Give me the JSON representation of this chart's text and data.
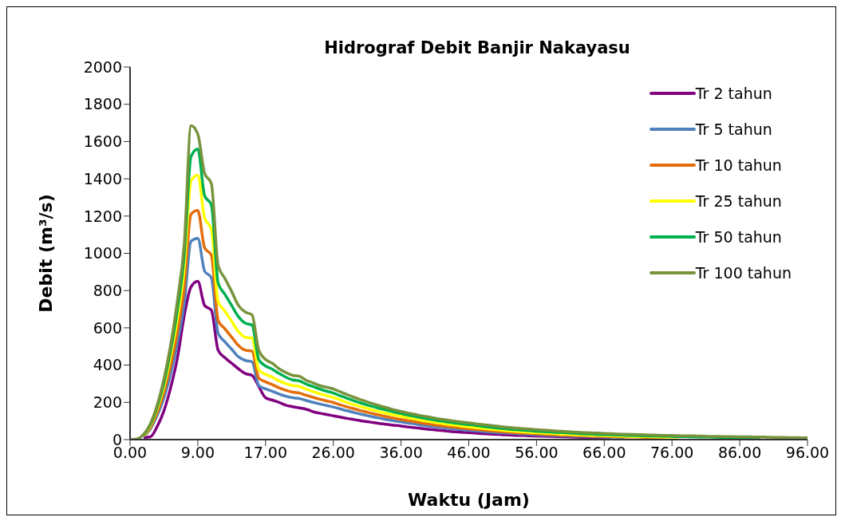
{
  "chart_data": {
    "type": "line",
    "title": "Hidrograf Debit Banjir Nakayasu",
    "xlabel": "Waktu (Jam)",
    "ylabel": "Debit (m³/s)",
    "categories": [
      "0.00",
      null,
      null,
      null,
      null,
      null,
      null,
      null,
      null,
      null,
      "9.00",
      null,
      null,
      null,
      null,
      null,
      null,
      null,
      null,
      null,
      "17.00",
      null,
      null,
      null,
      null,
      null,
      null,
      null,
      null,
      null,
      "26.00",
      null,
      null,
      null,
      null,
      null,
      null,
      null,
      null,
      null,
      "36.00",
      null,
      null,
      null,
      null,
      null,
      null,
      null,
      null,
      null,
      "46.00",
      null,
      null,
      null,
      null,
      null,
      null,
      null,
      null,
      null,
      "56.00",
      null,
      null,
      null,
      null,
      null,
      null,
      null,
      null,
      null,
      "66.00",
      null,
      null,
      null,
      null,
      null,
      null,
      null,
      null,
      null,
      "76.00",
      null,
      null,
      null,
      null,
      null,
      null,
      null,
      null,
      null,
      "86.00",
      null,
      null,
      null,
      null,
      null,
      null,
      null,
      null,
      null,
      "96.00"
    ],
    "ylim": [
      0,
      2000
    ],
    "yticks": [
      0,
      200,
      400,
      600,
      800,
      1000,
      1200,
      1400,
      1600,
      1800,
      2000
    ],
    "grid": false,
    "legend": "top right",
    "marker": "none",
    "line_style": "solid",
    "series": [
      {
        "name": "Tr 2 tahun",
        "color": "#800080",
        "values": [
          null,
          null,
          12,
          15,
          70,
          155,
          280,
          440,
          665,
          820,
          850,
          720,
          695,
          480,
          440,
          410,
          380,
          355,
          345,
          285,
          225,
          212,
          200,
          185,
          177,
          170,
          163,
          150,
          142,
          135,
          128,
          121,
          114,
          108,
          102,
          96,
          91,
          86,
          81,
          77,
          73,
          68,
          64,
          60,
          56,
          52,
          49,
          45,
          42,
          40,
          37,
          35,
          32,
          30,
          28,
          26,
          25,
          23,
          22,
          20,
          19,
          18,
          17,
          16,
          15,
          14,
          13,
          12,
          11,
          11,
          10,
          9,
          null,
          null,
          null,
          null,
          null,
          null,
          null,
          null,
          null,
          null,
          null,
          null,
          null,
          null,
          null,
          null,
          null,
          null,
          null,
          null,
          null,
          null,
          null,
          null,
          null,
          null,
          null,
          null,
          null
        ]
      },
      {
        "name": "Tr 5 tahun",
        "color": "#4f81bd",
        "values": [
          null,
          null,
          18,
          58,
          130,
          225,
          355,
          520,
          730,
          1065,
          1080,
          905,
          870,
          570,
          525,
          485,
          445,
          425,
          418,
          290,
          272,
          260,
          245,
          233,
          225,
          220,
          210,
          200,
          191,
          183,
          175,
          165,
          155,
          146,
          137,
          129,
          121,
          114,
          107,
          101,
          95,
          89,
          84,
          78,
          73,
          69,
          65,
          61,
          57,
          53,
          50,
          47,
          44,
          41,
          38,
          36,
          34,
          32,
          30,
          28,
          26,
          24,
          23,
          21,
          20,
          19,
          18,
          17,
          16,
          15,
          14,
          13,
          12,
          12,
          null,
          null,
          null,
          null,
          null,
          null,
          null,
          null,
          null,
          null,
          null,
          null,
          null,
          null,
          null,
          null,
          null,
          null,
          null,
          null,
          null,
          null,
          null,
          null,
          null,
          null,
          null
        ]
      },
      {
        "name": "Tr 10 tahun",
        "color": "#e46c0a",
        "values": [
          null,
          null,
          20,
          65,
          145,
          255,
          400,
          580,
          820,
          1210,
          1230,
          1030,
          990,
          640,
          595,
          550,
          505,
          480,
          475,
          330,
          310,
          295,
          278,
          265,
          255,
          250,
          238,
          227,
          217,
          208,
          199,
          187,
          176,
          166,
          156,
          147,
          138,
          130,
          122,
          115,
          108,
          102,
          96,
          90,
          84,
          79,
          74,
          70,
          66,
          62,
          58,
          55,
          51,
          48,
          45,
          43,
          40,
          37,
          35,
          33,
          31,
          29,
          27,
          26,
          24,
          23,
          21,
          20,
          19,
          18,
          17,
          16,
          15,
          14,
          14,
          13,
          12,
          12,
          11,
          10,
          null,
          null,
          null,
          null,
          null,
          null,
          null,
          null,
          null,
          null,
          null,
          null,
          null,
          null,
          null,
          null,
          null,
          null,
          null,
          null,
          null
        ]
      },
      {
        "name": "Tr 25 tahun",
        "color": "#ffff00",
        "values": [
          null,
          null,
          22,
          75,
          165,
          285,
          450,
          650,
          920,
          1390,
          1420,
          1190,
          1130,
          740,
          690,
          635,
          580,
          550,
          545,
          375,
          350,
          335,
          315,
          300,
          290,
          285,
          270,
          258,
          246,
          236,
          226,
          213,
          200,
          188,
          177,
          167,
          157,
          148,
          140,
          132,
          125,
          118,
          111,
          104,
          98,
          92,
          87,
          81,
          77,
          72,
          68,
          64,
          60,
          57,
          53,
          50,
          47,
          44,
          42,
          39,
          37,
          35,
          33,
          31,
          29,
          28,
          26,
          25,
          23,
          22,
          21,
          20,
          19,
          18,
          17,
          16,
          16,
          15,
          14,
          13,
          13,
          13,
          null,
          null,
          null,
          null,
          null,
          null,
          null,
          null,
          null,
          null,
          null,
          null,
          null,
          null,
          null,
          null,
          null,
          null,
          null
        ]
      },
      {
        "name": "Tr 50 tahun",
        "color": "#00b050",
        "values": [
          null,
          null,
          25,
          80,
          175,
          305,
          480,
          700,
          990,
          1520,
          1560,
          1310,
          1260,
          840,
          780,
          720,
          660,
          625,
          615,
          430,
          395,
          378,
          355,
          335,
          320,
          315,
          298,
          285,
          272,
          260,
          250,
          236,
          222,
          209,
          197,
          186,
          176,
          166,
          157,
          148,
          140,
          132,
          125,
          118,
          111,
          105,
          99,
          94,
          89,
          84,
          80,
          76,
          71,
          67,
          63,
          60,
          56,
          53,
          50,
          48,
          45,
          43,
          41,
          39,
          37,
          35,
          33,
          31,
          30,
          28,
          27,
          26,
          25,
          24,
          22,
          21,
          20,
          19,
          19,
          18,
          17,
          16,
          16,
          15,
          14,
          14,
          13,
          12,
          12,
          11,
          11,
          11,
          10,
          10,
          null,
          null,
          null,
          null,
          null,
          null,
          null
        ]
      },
      {
        "name": "Tr 100 tahun",
        "color": "#77933c",
        "values": [
          0,
          3,
          28,
          85,
          185,
          325,
          510,
          750,
          1050,
          1685,
          1640,
          1430,
          1375,
          935,
          865,
          795,
          720,
          685,
          670,
          480,
          430,
          410,
          380,
          360,
          345,
          340,
          318,
          305,
          290,
          281,
          272,
          257,
          242,
          228,
          215,
          203,
          191,
          180,
          170,
          160,
          151,
          143,
          136,
          128,
          122,
          115,
          109,
          104,
          99,
          94,
          90,
          85,
          81,
          77,
          73,
          69,
          65,
          62,
          59,
          57,
          54,
          51,
          49,
          46,
          44,
          42,
          40,
          38,
          36,
          35,
          33,
          32,
          30,
          29,
          28,
          27,
          26,
          25,
          24,
          23,
          22,
          21,
          20,
          20,
          19,
          18,
          17,
          17,
          16,
          16,
          15,
          15,
          14,
          14,
          13,
          12,
          12,
          11,
          11,
          10,
          10
        ]
      }
    ]
  }
}
